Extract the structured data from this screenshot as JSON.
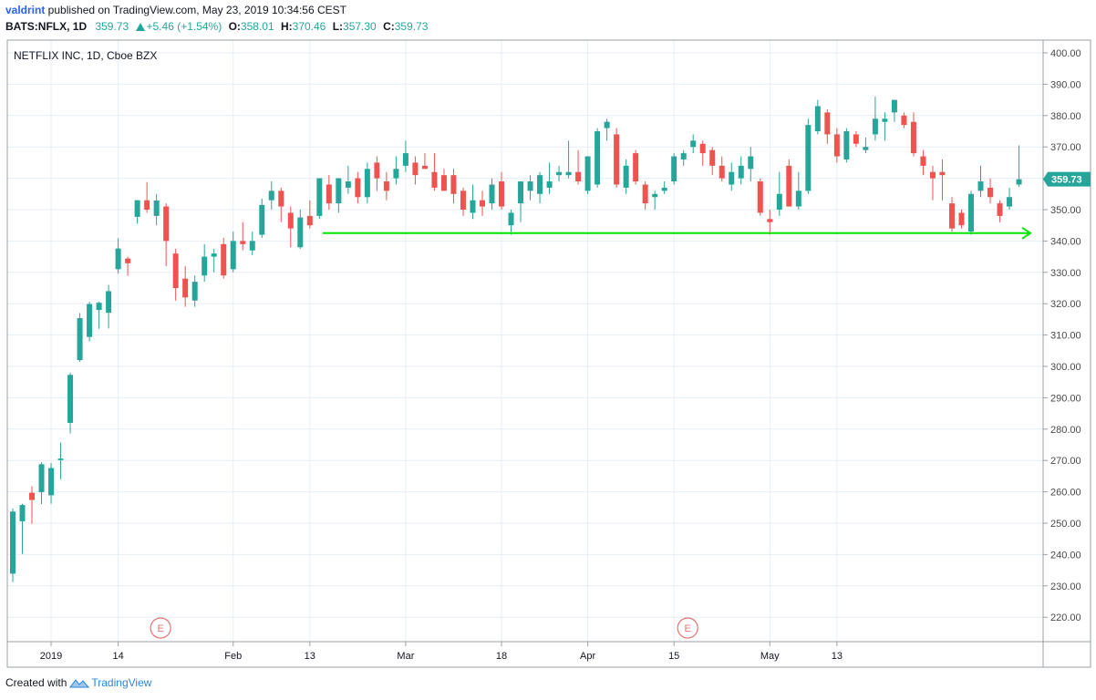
{
  "header": {
    "user": "valdrint",
    "published_text": " published on TradingView.com, May 23, 2019 10:34:56 CEST",
    "symbol": "BATS:NFLX, 1D",
    "last": "359.73",
    "change": "+5.46 (+1.54%)",
    "o_label": "O:",
    "o_value": "358.01",
    "h_label": "H:",
    "h_value": "370.46",
    "l_label": "L:",
    "l_value": "357.30",
    "c_label": "C:",
    "c_value": "359.73"
  },
  "pane_title": "NETFLIX INC, 1D, Cboe BZX",
  "footer": {
    "created_with": "Created with",
    "brand": "TradingView"
  },
  "colors": {
    "up": "#26a69a",
    "down": "#ef5350",
    "grid": "#e6eef5",
    "support_line": "#00e600",
    "earnings": "#e57373"
  },
  "chart_data": {
    "type": "candlestick",
    "symbol": "NFLX",
    "ylim": [
      212,
      404
    ],
    "y_ticks": [
      220,
      230,
      240,
      250,
      260,
      270,
      280,
      290,
      300,
      310,
      320,
      330,
      340,
      350,
      360,
      370,
      380,
      390,
      400
    ],
    "x_labels": [
      "2019",
      "14",
      "Feb",
      "13",
      "Mar",
      "18",
      "Apr",
      "15",
      "May",
      "13"
    ],
    "x_label_bar_index": [
      4,
      11,
      23,
      31,
      41,
      51,
      60,
      69,
      79,
      86
    ],
    "last_price_label": "359.73",
    "grid": true,
    "support_line": {
      "value": 342.5,
      "from_bar": 29,
      "to_bar": 93
    },
    "earnings_markers": [
      {
        "label": "E",
        "bar_index": 14
      },
      {
        "label": "E",
        "bar_index": 69
      }
    ],
    "candles": [
      {
        "o": 233.9,
        "h": 254.7,
        "l": 231.2,
        "c": 253.7
      },
      {
        "o": 250.6,
        "h": 256.2,
        "l": 240.2,
        "c": 255.8
      },
      {
        "o": 259.7,
        "h": 261.8,
        "l": 249.8,
        "c": 257.4
      },
      {
        "o": 259.9,
        "h": 269.4,
        "l": 256.1,
        "c": 268.8
      },
      {
        "o": 258.9,
        "h": 269.2,
        "l": 256.2,
        "c": 267.6
      },
      {
        "o": 270.1,
        "h": 275.7,
        "l": 264.0,
        "c": 270.6
      },
      {
        "o": 282.0,
        "h": 298.0,
        "l": 278.6,
        "c": 297.3
      },
      {
        "o": 302.0,
        "h": 317.0,
        "l": 301.5,
        "c": 315.4
      },
      {
        "o": 309.4,
        "h": 320.6,
        "l": 308.0,
        "c": 319.9
      },
      {
        "o": 318.0,
        "h": 320.7,
        "l": 312.0,
        "c": 320.3
      },
      {
        "o": 317.1,
        "h": 326.0,
        "l": 312.1,
        "c": 324.0
      },
      {
        "o": 331.0,
        "h": 340.9,
        "l": 329.6,
        "c": 337.6
      },
      {
        "o": 334.4,
        "h": 335.0,
        "l": 328.9,
        "c": 332.9
      },
      {
        "o": 347.7,
        "h": 353.0,
        "l": 345.5,
        "c": 353.0
      },
      {
        "o": 353.0,
        "h": 358.8,
        "l": 349.0,
        "c": 350.0
      },
      {
        "o": 348.0,
        "h": 355.0,
        "l": 345.0,
        "c": 352.9
      },
      {
        "o": 351.0,
        "h": 352.0,
        "l": 332.0,
        "c": 340.0
      },
      {
        "o": 336.0,
        "h": 337.5,
        "l": 321.0,
        "c": 325.0
      },
      {
        "o": 328.0,
        "h": 332.0,
        "l": 319.0,
        "c": 322.0
      },
      {
        "o": 321.0,
        "h": 329.0,
        "l": 319.0,
        "c": 327.0
      },
      {
        "o": 329.0,
        "h": 339.0,
        "l": 327.0,
        "c": 335.0
      },
      {
        "o": 335.0,
        "h": 337.5,
        "l": 330.0,
        "c": 336.0
      },
      {
        "o": 339.0,
        "h": 341.0,
        "l": 328.0,
        "c": 329.0
      },
      {
        "o": 331.0,
        "h": 343.0,
        "l": 330.0,
        "c": 340.0
      },
      {
        "o": 340.0,
        "h": 346.0,
        "l": 337.0,
        "c": 339.0
      },
      {
        "o": 337.0,
        "h": 343.0,
        "l": 335.5,
        "c": 340.0
      },
      {
        "o": 342.0,
        "h": 353.5,
        "l": 341.0,
        "c": 351.5
      },
      {
        "o": 353.0,
        "h": 359.0,
        "l": 350.0,
        "c": 356.0
      },
      {
        "o": 356.0,
        "h": 357.0,
        "l": 346.0,
        "c": 351.0
      },
      {
        "o": 349.0,
        "h": 351.0,
        "l": 338.0,
        "c": 344.0
      },
      {
        "o": 338.0,
        "h": 350.0,
        "l": 337.5,
        "c": 347.5
      },
      {
        "o": 348.0,
        "h": 353.0,
        "l": 344.0,
        "c": 345.0
      },
      {
        "o": 348.0,
        "h": 360.0,
        "l": 347.0,
        "c": 360.0
      },
      {
        "o": 358.0,
        "h": 361.0,
        "l": 350.0,
        "c": 352.0
      },
      {
        "o": 352.0,
        "h": 360.0,
        "l": 349.0,
        "c": 360.0
      },
      {
        "o": 357.0,
        "h": 364.0,
        "l": 355.0,
        "c": 359.0
      },
      {
        "o": 360.0,
        "h": 362.0,
        "l": 352.0,
        "c": 354.0
      },
      {
        "o": 354.0,
        "h": 365.0,
        "l": 352.0,
        "c": 363.0
      },
      {
        "o": 365.0,
        "h": 367.0,
        "l": 356.0,
        "c": 360.0
      },
      {
        "o": 359.0,
        "h": 362.0,
        "l": 353.0,
        "c": 356.0
      },
      {
        "o": 360.0,
        "h": 367.0,
        "l": 358.0,
        "c": 363.0
      },
      {
        "o": 364.0,
        "h": 372.0,
        "l": 362.0,
        "c": 368.0
      },
      {
        "o": 365.0,
        "h": 367.0,
        "l": 358.0,
        "c": 361.0
      },
      {
        "o": 364.0,
        "h": 368.0,
        "l": 363.0,
        "c": 363.0
      },
      {
        "o": 362.0,
        "h": 368.0,
        "l": 356.0,
        "c": 357.0
      },
      {
        "o": 361.0,
        "h": 363.0,
        "l": 356.0,
        "c": 356.0
      },
      {
        "o": 361.0,
        "h": 363.0,
        "l": 352.0,
        "c": 355.0
      },
      {
        "o": 356.0,
        "h": 357.0,
        "l": 348.0,
        "c": 350.0
      },
      {
        "o": 349.0,
        "h": 358.0,
        "l": 347.0,
        "c": 353.0
      },
      {
        "o": 353.0,
        "h": 356.0,
        "l": 348.0,
        "c": 351.0
      },
      {
        "o": 352.0,
        "h": 360.0,
        "l": 350.0,
        "c": 358.0
      },
      {
        "o": 359.0,
        "h": 362.0,
        "l": 350.0,
        "c": 351.0
      },
      {
        "o": 345.0,
        "h": 350.0,
        "l": 342.0,
        "c": 349.0
      },
      {
        "o": 352.0,
        "h": 358.0,
        "l": 346.0,
        "c": 359.0
      },
      {
        "o": 356.0,
        "h": 361.0,
        "l": 353.0,
        "c": 359.0
      },
      {
        "o": 355.0,
        "h": 362.0,
        "l": 352.0,
        "c": 361.0
      },
      {
        "o": 357.0,
        "h": 365.0,
        "l": 355.0,
        "c": 359.0
      },
      {
        "o": 361.0,
        "h": 364.0,
        "l": 359.0,
        "c": 362.0
      },
      {
        "o": 361.0,
        "h": 372.0,
        "l": 360.0,
        "c": 362.0
      },
      {
        "o": 362.0,
        "h": 369.0,
        "l": 358.0,
        "c": 359.0
      },
      {
        "o": 356.0,
        "h": 367.0,
        "l": 355.0,
        "c": 367.0
      },
      {
        "o": 358.0,
        "h": 376.0,
        "l": 357.0,
        "c": 375.0
      },
      {
        "o": 376.0,
        "h": 379.0,
        "l": 372.0,
        "c": 378.0
      },
      {
        "o": 374.0,
        "h": 376.0,
        "l": 357.0,
        "c": 358.0
      },
      {
        "o": 357.0,
        "h": 366.0,
        "l": 355.0,
        "c": 364.0
      },
      {
        "o": 368.0,
        "h": 369.0,
        "l": 358.0,
        "c": 359.0
      },
      {
        "o": 358.0,
        "h": 359.0,
        "l": 350.0,
        "c": 352.0
      },
      {
        "o": 354.0,
        "h": 356.0,
        "l": 350.0,
        "c": 355.0
      },
      {
        "o": 356.0,
        "h": 359.0,
        "l": 355.0,
        "c": 357.0
      },
      {
        "o": 359.0,
        "h": 368.0,
        "l": 358.0,
        "c": 367.0
      },
      {
        "o": 366.0,
        "h": 369.0,
        "l": 364.0,
        "c": 368.0
      },
      {
        "o": 370.0,
        "h": 374.0,
        "l": 368.0,
        "c": 372.0
      },
      {
        "o": 371.0,
        "h": 372.0,
        "l": 364.0,
        "c": 368.0
      },
      {
        "o": 369.0,
        "h": 370.0,
        "l": 361.0,
        "c": 364.0
      },
      {
        "o": 364.0,
        "h": 367.0,
        "l": 359.0,
        "c": 360.0
      },
      {
        "o": 358.0,
        "h": 365.0,
        "l": 356.0,
        "c": 362.0
      },
      {
        "o": 360.0,
        "h": 367.0,
        "l": 358.0,
        "c": 364.0
      },
      {
        "o": 363.0,
        "h": 370.0,
        "l": 359.0,
        "c": 367.0
      },
      {
        "o": 359.0,
        "h": 360.0,
        "l": 348.0,
        "c": 349.0
      },
      {
        "o": 347.0,
        "h": 350.0,
        "l": 342.0,
        "c": 346.0
      },
      {
        "o": 350.0,
        "h": 362.0,
        "l": 348.0,
        "c": 355.0
      },
      {
        "o": 364.0,
        "h": 366.0,
        "l": 351.0,
        "c": 351.0
      },
      {
        "o": 351.0,
        "h": 362.0,
        "l": 350.0,
        "c": 356.0
      },
      {
        "o": 356.0,
        "h": 379.0,
        "l": 355.0,
        "c": 377.0
      },
      {
        "o": 375.0,
        "h": 385.0,
        "l": 374.0,
        "c": 383.0
      },
      {
        "o": 381.0,
        "h": 382.0,
        "l": 371.0,
        "c": 374.0
      },
      {
        "o": 374.0,
        "h": 376.0,
        "l": 365.0,
        "c": 367.0
      },
      {
        "o": 366.0,
        "h": 376.0,
        "l": 365.0,
        "c": 375.0
      },
      {
        "o": 374.0,
        "h": 375.0,
        "l": 370.0,
        "c": 371.0
      },
      {
        "o": 369.0,
        "h": 373.0,
        "l": 368.0,
        "c": 370.0
      },
      {
        "o": 374.0,
        "h": 386.0,
        "l": 372.0,
        "c": 379.0
      },
      {
        "o": 378.0,
        "h": 381.0,
        "l": 372.0,
        "c": 379.0
      },
      {
        "o": 381.0,
        "h": 385.0,
        "l": 378.0,
        "c": 385.0
      },
      {
        "o": 380.0,
        "h": 381.0,
        "l": 376.0,
        "c": 377.0
      },
      {
        "o": 378.0,
        "h": 381.0,
        "l": 367.0,
        "c": 368.0
      },
      {
        "o": 367.0,
        "h": 369.0,
        "l": 361.0,
        "c": 364.0
      },
      {
        "o": 362.0,
        "h": 364.0,
        "l": 353.0,
        "c": 360.0
      },
      {
        "o": 362.0,
        "h": 366.0,
        "l": 353.0,
        "c": 361.0
      },
      {
        "o": 352.0,
        "h": 354.0,
        "l": 343.0,
        "c": 344.0
      },
      {
        "o": 349.0,
        "h": 350.0,
        "l": 344.0,
        "c": 345.0
      },
      {
        "o": 343.0,
        "h": 356.0,
        "l": 342.0,
        "c": 355.0
      },
      {
        "o": 356.0,
        "h": 364.0,
        "l": 354.0,
        "c": 359.0
      },
      {
        "o": 357.0,
        "h": 360.0,
        "l": 352.0,
        "c": 354.0
      },
      {
        "o": 352.0,
        "h": 353.0,
        "l": 346.0,
        "c": 348.0
      },
      {
        "o": 351.0,
        "h": 357.0,
        "l": 350.0,
        "c": 354.0
      },
      {
        "o": 358.0,
        "h": 370.5,
        "l": 357.3,
        "c": 359.7
      }
    ]
  }
}
